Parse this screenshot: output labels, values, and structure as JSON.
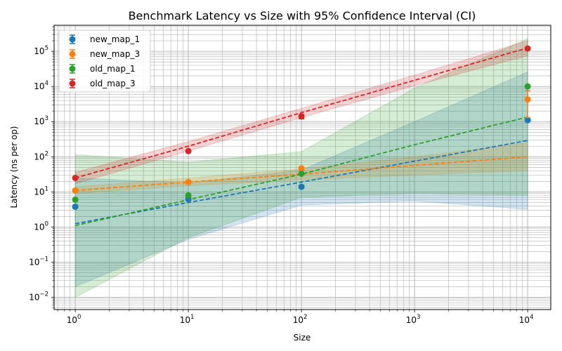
{
  "chart_data": {
    "type": "line",
    "title": "Benchmark Latency vs Size with 95% Confidence Interval (CI)",
    "xlabel": "Size",
    "ylabel": "Latency (ns per op)",
    "x_scale": "log",
    "y_scale": "log",
    "xlim": [
      0.65,
      16000
    ],
    "ylim": [
      0.0045,
      550000
    ],
    "x_ticks": [
      {
        "base": "10",
        "exp": "0",
        "value": 1
      },
      {
        "base": "10",
        "exp": "1",
        "value": 10
      },
      {
        "base": "10",
        "exp": "2",
        "value": 100
      },
      {
        "base": "10",
        "exp": "3",
        "value": 1000
      },
      {
        "base": "10",
        "exp": "4",
        "value": 10000
      }
    ],
    "y_ticks": [
      {
        "base": "10",
        "exp": "−2",
        "value": 0.01
      },
      {
        "base": "10",
        "exp": "−1",
        "value": 0.1
      },
      {
        "base": "10",
        "exp": "0",
        "value": 1
      },
      {
        "base": "10",
        "exp": "1",
        "value": 10
      },
      {
        "base": "10",
        "exp": "2",
        "value": 100
      },
      {
        "base": "10",
        "exp": "3",
        "value": 1000
      },
      {
        "base": "10",
        "exp": "4",
        "value": 10000
      },
      {
        "base": "10",
        "exp": "5",
        "value": 100000
      }
    ],
    "grid": "both major and minor",
    "legend_position": "upper-left",
    "series": [
      {
        "name": "new_map_1",
        "color": "#1f77b4",
        "x": [
          1,
          10,
          100,
          10000
        ],
        "y": [
          3.8,
          6.2,
          14,
          1100
        ],
        "yerr_low": [
          3.5,
          5.8,
          13,
          1000
        ],
        "yerr_high": [
          4.2,
          6.6,
          15.5,
          1200
        ],
        "fit_x": [
          1,
          10,
          100,
          1000,
          10000
        ],
        "fit_y": [
          1.25,
          5,
          19,
          75,
          290
        ],
        "ci_low": [
          0.02,
          0.45,
          4.2,
          5.5,
          3.2
        ],
        "ci_high": [
          25,
          18,
          42,
          1000,
          26000
        ]
      },
      {
        "name": "new_map_3",
        "color": "#ff7f0e",
        "x": [
          1,
          10,
          100,
          10000
        ],
        "y": [
          11,
          19,
          47,
          4300
        ],
        "yerr_low": [
          10,
          17.5,
          43,
          1300
        ],
        "yerr_high": [
          12,
          21,
          51,
          7500
        ],
        "fit_x": [
          1,
          10,
          100,
          1000,
          10000
        ],
        "fit_y": [
          11,
          19,
          32,
          57,
          100
        ],
        "ci_low": [
          9,
          15,
          22,
          30,
          40
        ],
        "ci_high": [
          14,
          25,
          45,
          100,
          250
        ]
      },
      {
        "name": "old_map_1",
        "color": "#2ca02c",
        "x": [
          1,
          10,
          100,
          10000
        ],
        "y": [
          6,
          8,
          33,
          10000
        ],
        "yerr_low": [
          5.6,
          7.4,
          31,
          9500
        ],
        "yerr_high": [
          6.4,
          8.6,
          35,
          10500
        ],
        "fit_x": [
          1,
          10,
          100,
          1000,
          10000
        ],
        "fit_y": [
          1.1,
          6,
          32,
          220,
          1350
        ],
        "ci_low": [
          0.01,
          0.5,
          7,
          9,
          8
        ],
        "ci_high": [
          115,
          70,
          140,
          9000,
          230000
        ]
      },
      {
        "name": "old_map_3",
        "color": "#d62728",
        "x": [
          1,
          10,
          100,
          10000
        ],
        "y": [
          25,
          145,
          1400,
          120000
        ],
        "yerr_low": [
          23.5,
          137,
          1200,
          112000
        ],
        "yerr_high": [
          26.5,
          153,
          1600,
          128000
        ],
        "fit_x": [
          1,
          10,
          100,
          1000,
          10000
        ],
        "fit_y": [
          25,
          200,
          1800,
          15000,
          125000
        ],
        "ci_low": [
          17,
          145,
          1300,
          10500,
          75000
        ],
        "ci_high": [
          36,
          270,
          2400,
          21000,
          200000
        ]
      }
    ]
  }
}
